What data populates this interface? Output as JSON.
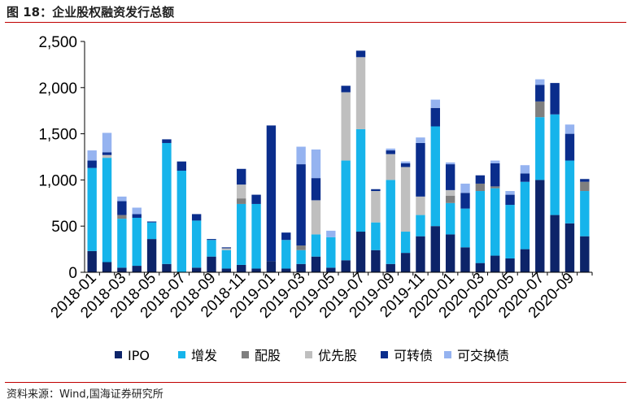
{
  "figure": {
    "title": "图 18：企业股权融资发行总额",
    "source": "资料来源：Wind,国海证券研究所"
  },
  "chart_data": {
    "type": "bar",
    "stacked": true,
    "title": "",
    "xlabel": "",
    "ylabel": "",
    "ylim": [
      0,
      2500
    ],
    "yticks": [
      "0",
      "500",
      "1,000",
      "1,500",
      "2,000",
      "2,500"
    ],
    "ytick_values": [
      0,
      500,
      1000,
      1500,
      2000,
      2500
    ],
    "grid": false,
    "legend_position": "bottom",
    "categories": [
      "2018-01",
      "2018-02",
      "2018-03",
      "2018-04",
      "2018-05",
      "2018-06",
      "2018-07",
      "2018-08",
      "2018-09",
      "2018-10",
      "2018-11",
      "2018-12",
      "2019-01",
      "2019-02",
      "2019-03",
      "2019-04",
      "2019-05",
      "2019-06",
      "2019-07",
      "2019-08",
      "2019-09",
      "2019-10",
      "2019-11",
      "2019-12",
      "2020-01",
      "2020-02",
      "2020-03",
      "2020-04",
      "2020-05",
      "2020-06",
      "2020-07",
      "2020-08",
      "2020-09",
      "2020-10"
    ],
    "xtick_labels": [
      "2018-01",
      "2018-03",
      "2018-05",
      "2018-07",
      "2018-09",
      "2018-11",
      "2019-01",
      "2019-03",
      "2019-05",
      "2019-07",
      "2019-09",
      "2019-11",
      "2020-01",
      "2020-03",
      "2020-05",
      "2020-07",
      "2020-09"
    ],
    "series": [
      {
        "name": "IPO",
        "color": "#0d2469",
        "values": [
          230,
          110,
          50,
          70,
          360,
          90,
          0,
          50,
          170,
          40,
          80,
          40,
          120,
          40,
          90,
          170,
          50,
          130,
          440,
          240,
          90,
          210,
          390,
          500,
          410,
          270,
          100,
          180,
          150,
          250,
          1000,
          620,
          530,
          390
        ]
      },
      {
        "name": "增发",
        "color": "#16b4eb",
        "values": [
          900,
          1130,
          530,
          520,
          180,
          1310,
          1100,
          510,
          180,
          200,
          660,
          700,
          0,
          310,
          150,
          240,
          330,
          1080,
          1110,
          300,
          910,
          230,
          230,
          1080,
          340,
          420,
          780,
          730,
          580,
          730,
          680,
          1090,
          680,
          490
        ]
      },
      {
        "name": "配股",
        "color": "#7f7f7f",
        "values": [
          0,
          0,
          40,
          0,
          0,
          0,
          0,
          0,
          0,
          0,
          60,
          0,
          0,
          0,
          50,
          0,
          0,
          0,
          0,
          0,
          0,
          0,
          0,
          0,
          80,
          0,
          80,
          20,
          0,
          0,
          170,
          0,
          0,
          100
        ]
      },
      {
        "name": "优先股",
        "color": "#bfbfbf",
        "values": [
          0,
          30,
          0,
          0,
          0,
          0,
          0,
          0,
          0,
          20,
          150,
          0,
          0,
          0,
          0,
          370,
          0,
          740,
          780,
          340,
          280,
          700,
          200,
          0,
          60,
          0,
          0,
          0,
          0,
          0,
          0,
          0,
          0,
          0
        ]
      },
      {
        "name": "可转债",
        "color": "#0a2d8c",
        "values": [
          80,
          30,
          150,
          40,
          10,
          40,
          100,
          70,
          10,
          10,
          170,
          100,
          1470,
          80,
          880,
          240,
          0,
          70,
          70,
          20,
          40,
          40,
          580,
          200,
          280,
          170,
          90,
          250,
          110,
          90,
          180,
          340,
          290,
          30
        ]
      },
      {
        "name": "可交换债",
        "color": "#95b3f0",
        "values": [
          110,
          210,
          50,
          70,
          0,
          0,
          0,
          0,
          0,
          0,
          0,
          0,
          0,
          0,
          190,
          310,
          70,
          0,
          0,
          0,
          20,
          20,
          60,
          90,
          20,
          100,
          0,
          30,
          40,
          90,
          60,
          0,
          100,
          0
        ]
      }
    ]
  }
}
